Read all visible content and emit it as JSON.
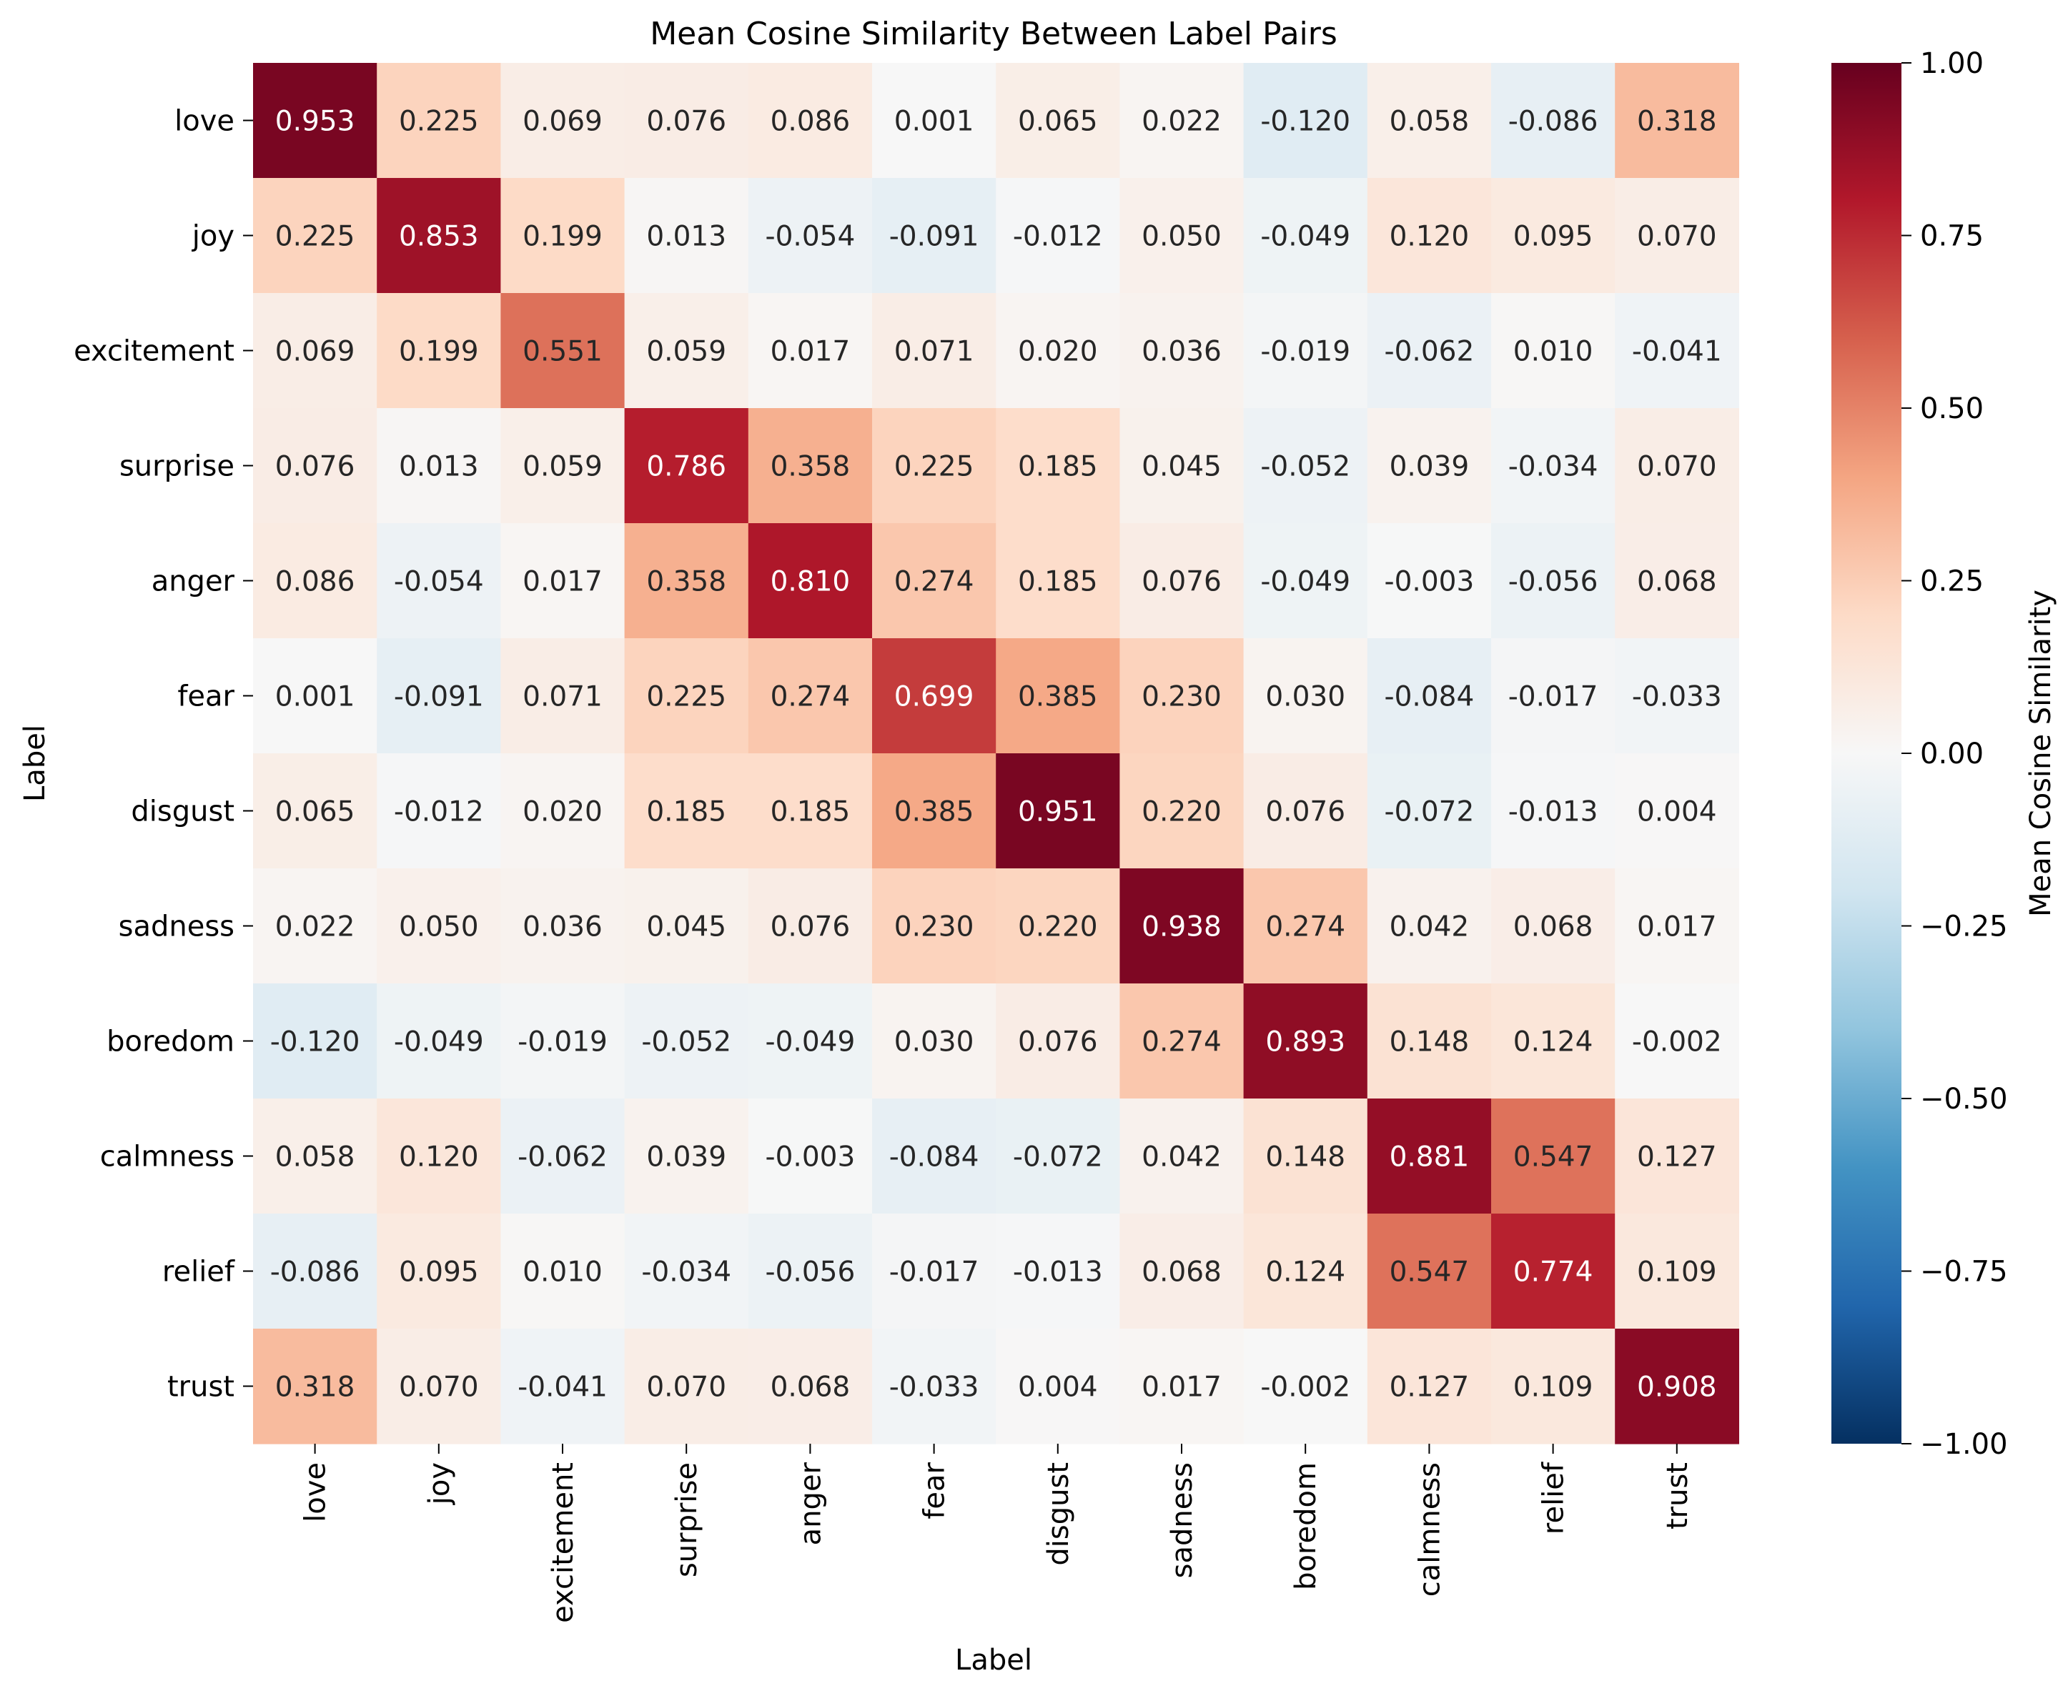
{
  "chart_data": {
    "type": "heatmap",
    "title": "Mean Cosine Similarity Between Label Pairs",
    "xlabel": "Label",
    "ylabel": "Label",
    "labels": [
      "love",
      "joy",
      "excitement",
      "surprise",
      "anger",
      "fear",
      "disgust",
      "sadness",
      "boredom",
      "calmness",
      "relief",
      "trust"
    ],
    "values": [
      [
        0.953,
        0.225,
        0.069,
        0.076,
        0.086,
        0.001,
        0.065,
        0.022,
        -0.12,
        0.058,
        -0.086,
        0.318
      ],
      [
        0.225,
        0.853,
        0.199,
        0.013,
        -0.054,
        -0.091,
        -0.012,
        0.05,
        -0.049,
        0.12,
        0.095,
        0.07
      ],
      [
        0.069,
        0.199,
        0.551,
        0.059,
        0.017,
        0.071,
        0.02,
        0.036,
        -0.019,
        -0.062,
        0.01,
        -0.041
      ],
      [
        0.076,
        0.013,
        0.059,
        0.786,
        0.358,
        0.225,
        0.185,
        0.045,
        -0.052,
        0.039,
        -0.034,
        0.07
      ],
      [
        0.086,
        -0.054,
        0.017,
        0.358,
        0.81,
        0.274,
        0.185,
        0.076,
        -0.049,
        -0.003,
        -0.056,
        0.068
      ],
      [
        0.001,
        -0.091,
        0.071,
        0.225,
        0.274,
        0.699,
        0.385,
        0.23,
        0.03,
        -0.084,
        -0.017,
        -0.033
      ],
      [
        0.065,
        -0.012,
        0.02,
        0.185,
        0.185,
        0.385,
        0.951,
        0.22,
        0.076,
        -0.072,
        -0.013,
        0.004
      ],
      [
        0.022,
        0.05,
        0.036,
        0.045,
        0.076,
        0.23,
        0.22,
        0.938,
        0.274,
        0.042,
        0.068,
        0.017
      ],
      [
        -0.12,
        -0.049,
        -0.019,
        -0.052,
        -0.049,
        0.03,
        0.076,
        0.274,
        0.893,
        0.148,
        0.124,
        -0.002
      ],
      [
        0.058,
        0.12,
        -0.062,
        0.039,
        -0.003,
        -0.084,
        -0.072,
        0.042,
        0.148,
        0.881,
        0.547,
        0.127
      ],
      [
        -0.086,
        0.095,
        0.01,
        -0.034,
        -0.056,
        -0.017,
        -0.013,
        0.068,
        0.124,
        0.547,
        0.774,
        0.109
      ],
      [
        0.318,
        0.07,
        -0.041,
        0.07,
        0.068,
        -0.033,
        0.004,
        0.017,
        -0.002,
        0.127,
        0.109,
        0.908
      ]
    ],
    "colorbar": {
      "label": "Mean Cosine Similarity",
      "range": [
        -1.0,
        1.0
      ],
      "ticks": [
        1.0,
        0.75,
        0.5,
        0.25,
        0.0,
        -0.25,
        -0.5,
        -0.75,
        -1.0
      ],
      "tick_labels": [
        "1.00",
        "0.75",
        "0.50",
        "0.25",
        "0.00",
        "−0.25",
        "−0.50",
        "−0.75",
        "−1.00"
      ],
      "colormap": "RdBu_r"
    },
    "colors": {
      "stops": [
        "#053061",
        "#2166ac",
        "#4393c3",
        "#92c5de",
        "#d1e5f0",
        "#f7f7f7",
        "#fddbc7",
        "#f4a582",
        "#d6604d",
        "#b2182b",
        "#67001f"
      ],
      "text_dark": "#262626",
      "text_light": "#ffffff"
    }
  }
}
